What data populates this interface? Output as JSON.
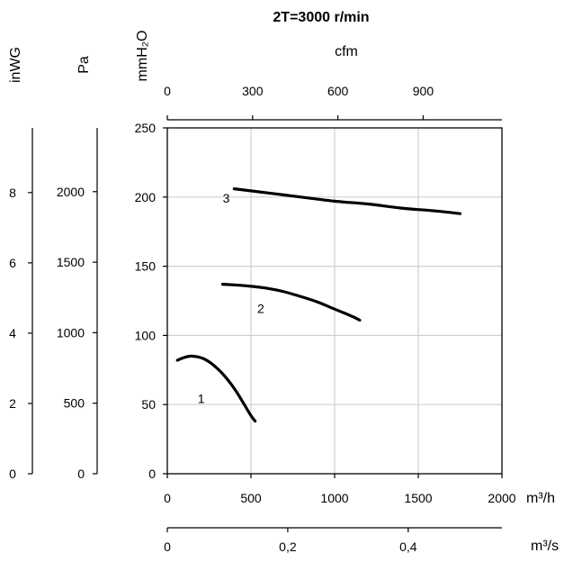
{
  "chart_data": {
    "type": "line",
    "title": "2T=3000 r/min",
    "grid": true,
    "x": {
      "label": "m³/h",
      "range": [
        0,
        2000
      ],
      "ticks": [
        0,
        500,
        1000,
        1500,
        2000
      ],
      "tick_labels": [
        "0",
        "500",
        "1000",
        "1500",
        "2000"
      ]
    },
    "x_m3s": {
      "label": "m³/s",
      "range": [
        0,
        0.5556
      ],
      "ticks": [
        0,
        0.2,
        0.4
      ],
      "tick_labels": [
        "0",
        "0,2",
        "0,4"
      ]
    },
    "x_cfm": {
      "label": "cfm",
      "range": [
        0,
        1177
      ],
      "ticks": [
        0,
        300,
        600,
        900
      ],
      "tick_labels": [
        "0",
        "300",
        "600",
        "900"
      ]
    },
    "y": {
      "label": "mmH₂O",
      "range": [
        0,
        250
      ],
      "ticks": [
        0,
        50,
        100,
        150,
        200,
        250
      ],
      "tick_labels": [
        "0",
        "50",
        "100",
        "150",
        "200",
        "250"
      ]
    },
    "y_pa": {
      "label": "Pa",
      "range": [
        0,
        2452
      ],
      "ticks": [
        0,
        500,
        1000,
        1500,
        2000
      ],
      "tick_labels": [
        "0",
        "500",
        "1000",
        "1500",
        "2000"
      ]
    },
    "y_inwg": {
      "label": "inWG",
      "range": [
        0,
        9.84
      ],
      "ticks": [
        0,
        2,
        4,
        6,
        8
      ],
      "tick_labels": [
        "0",
        "2",
        "4",
        "6",
        "8"
      ]
    },
    "series": [
      {
        "label": "1",
        "x": [
          60,
          100,
          140,
          180,
          220,
          260,
          300,
          340,
          380,
          420,
          460,
          500,
          525
        ],
        "y": [
          82,
          84,
          85,
          84.5,
          83,
          80,
          76,
          71,
          65,
          58,
          50,
          42,
          38
        ]
      },
      {
        "label": "2",
        "x": [
          330,
          400,
          500,
          600,
          700,
          800,
          900,
          1000,
          1100,
          1150
        ],
        "y": [
          137,
          136.5,
          135.5,
          134,
          131.5,
          128,
          124,
          119,
          114,
          111
        ]
      },
      {
        "label": "3",
        "x": [
          400,
          600,
          800,
          1000,
          1200,
          1400,
          1600,
          1750
        ],
        "y": [
          206,
          203,
          200,
          197,
          195,
          192,
          190,
          188
        ]
      }
    ]
  }
}
